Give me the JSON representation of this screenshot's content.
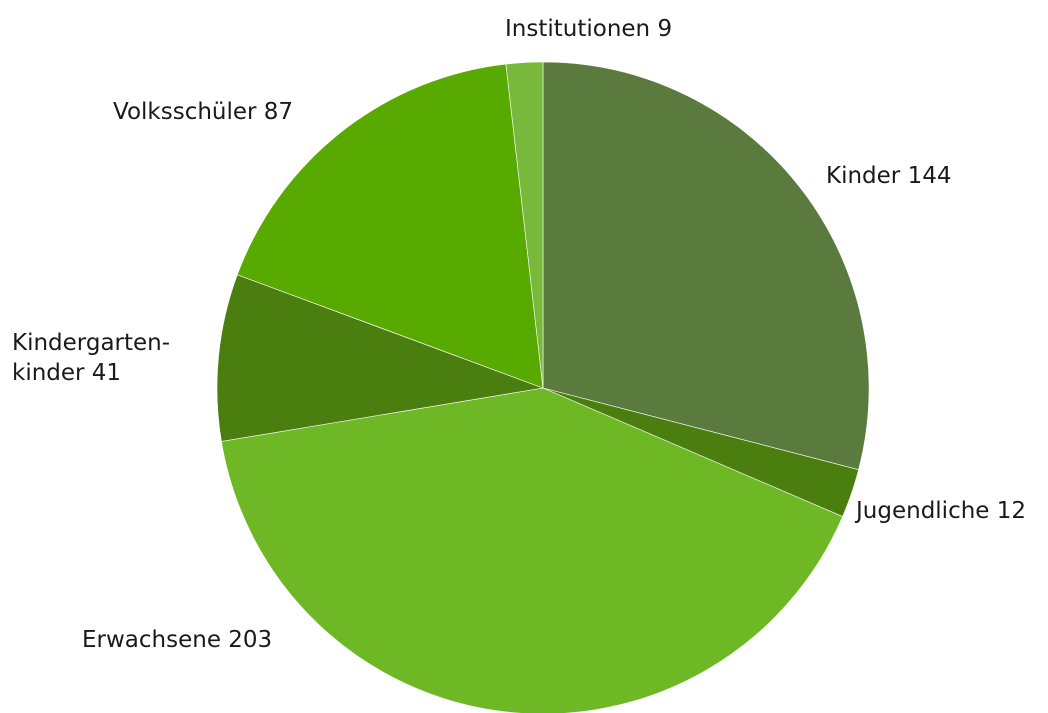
{
  "chart_data": {
    "type": "pie",
    "title": "",
    "start_angle_deg": 0,
    "direction": "clockwise",
    "legend": "none",
    "slices": [
      {
        "key": "kinder",
        "label_lines": [
          "Kinder 144"
        ],
        "value": 144,
        "color": "#5b7a3d"
      },
      {
        "key": "jugendliche",
        "label_lines": [
          "Jugendliche 12"
        ],
        "value": 12,
        "color": "#4a7f10"
      },
      {
        "key": "erwachsene",
        "label_lines": [
          "Erwachsene 203"
        ],
        "value": 203,
        "color": "#6db824"
      },
      {
        "key": "kindergartenkinder",
        "label_lines": [
          "Kindergarten-",
          "kinder 41"
        ],
        "value": 41,
        "color": "#4a7f10"
      },
      {
        "key": "volksschueler",
        "label_lines": [
          "Volksschüler 87"
        ],
        "value": 87,
        "color": "#58aa00"
      },
      {
        "key": "institutionen",
        "label_lines": [
          "Institutionen 9"
        ],
        "value": 9,
        "color": "#78b93c"
      }
    ]
  }
}
